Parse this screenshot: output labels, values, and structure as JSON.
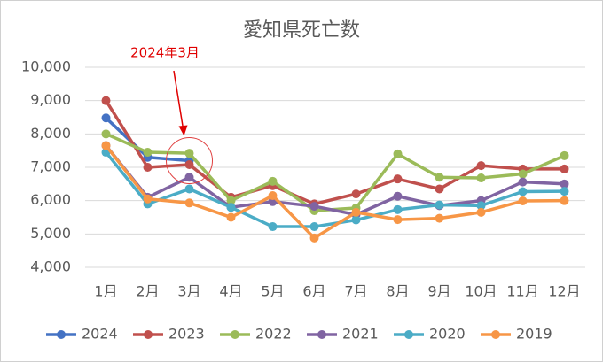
{
  "chart_data": {
    "type": "line",
    "title": "愛知県死亡数",
    "annotation": "2024年3月",
    "categories": [
      "1月",
      "2月",
      "3月",
      "4月",
      "5月",
      "6月",
      "7月",
      "8月",
      "9月",
      "10月",
      "11月",
      "12月"
    ],
    "series": [
      {
        "name": "2024",
        "color": "#4472c4",
        "values": [
          8480,
          7300,
          7200,
          null,
          null,
          null,
          null,
          null,
          null,
          null,
          null,
          null
        ]
      },
      {
        "name": "2023",
        "color": "#c0504d",
        "values": [
          9000,
          7000,
          7080,
          6100,
          6450,
          5900,
          6200,
          6650,
          6350,
          7050,
          6950,
          6950
        ]
      },
      {
        "name": "2022",
        "color": "#9bbb59",
        "values": [
          8000,
          7450,
          7420,
          6000,
          6580,
          5700,
          5780,
          7400,
          6700,
          6680,
          6800,
          7350
        ]
      },
      {
        "name": "2021",
        "color": "#8064a2",
        "values": [
          7650,
          6100,
          6700,
          5800,
          5970,
          5830,
          5580,
          6130,
          5850,
          6000,
          6560,
          6500
        ]
      },
      {
        "name": "2020",
        "color": "#4bacc6",
        "values": [
          7450,
          5900,
          6350,
          5800,
          5220,
          5220,
          5420,
          5730,
          5870,
          5850,
          6270,
          6280
        ]
      },
      {
        "name": "2019",
        "color": "#f79646",
        "values": [
          7650,
          6050,
          5930,
          5500,
          6150,
          4880,
          5650,
          5430,
          5470,
          5650,
          5990,
          6000
        ]
      }
    ],
    "ylim": [
      4000,
      10000
    ],
    "yticks": [
      {
        "value": 4000,
        "label": "4,000"
      },
      {
        "value": 5000,
        "label": "5,000"
      },
      {
        "value": 6000,
        "label": "6,000"
      },
      {
        "value": 7000,
        "label": "7,000"
      },
      {
        "value": 8000,
        "label": "8,000"
      },
      {
        "value": 9000,
        "label": "9,000"
      },
      {
        "value": 10000,
        "label": "10,000"
      }
    ],
    "grid": true,
    "legend": "bottom"
  }
}
